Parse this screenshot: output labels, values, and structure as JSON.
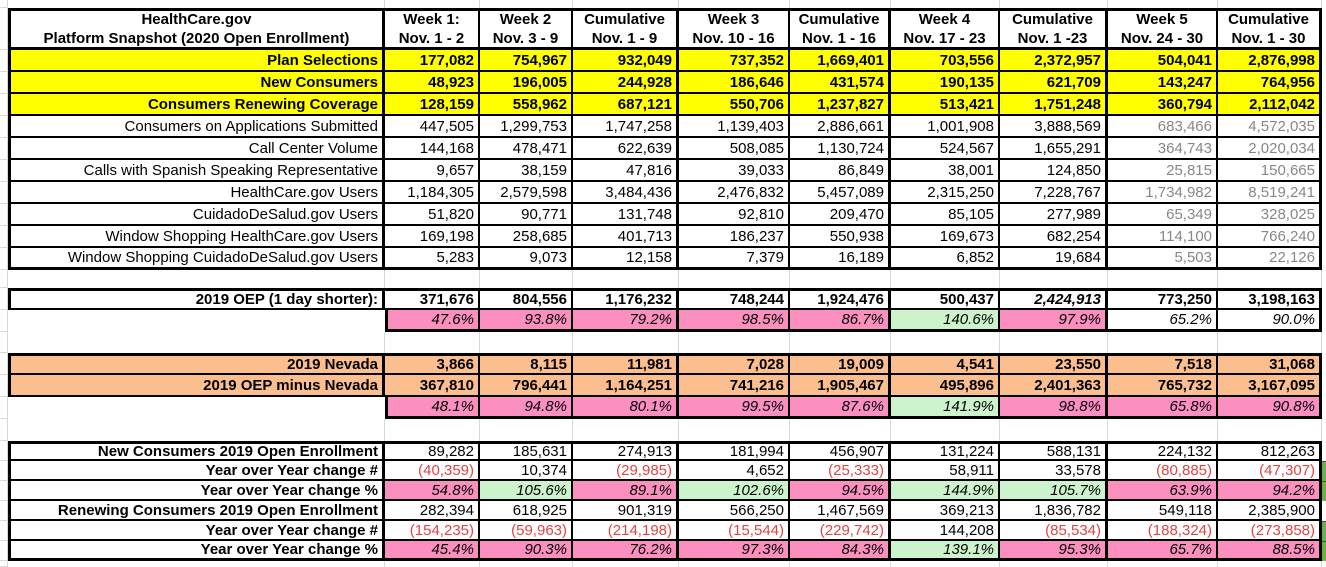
{
  "colors": {
    "highlight_yellow": "#ffff00",
    "highlight_orange": "#fbbf8f",
    "percent_pink": "#fa8fc0",
    "percent_green": "#ccf3cc",
    "negative_red": "#e04444",
    "muted_gray_text": "#878787"
  },
  "table": {
    "title": [
      "HealthCare.gov",
      "Platform Snapshot (2020 Open Enrollment)"
    ],
    "columns": [
      [
        "Week 1:",
        "Nov. 1 - 2"
      ],
      [
        "Week 2",
        "Nov. 3 - 9"
      ],
      [
        "Cumulative",
        "Nov. 1 - 9"
      ],
      [
        "Week 3",
        "Nov. 10 - 16"
      ],
      [
        "Cumulative",
        "Nov. 1 - 16"
      ],
      [
        "Week 4",
        "Nov. 17 - 23"
      ],
      [
        "Cumulative",
        "Nov. 1 -23"
      ],
      [
        "Week 5",
        "Nov. 24 - 30"
      ],
      [
        "Cumulative",
        "Nov. 1 - 30"
      ]
    ],
    "rows": [
      {
        "label": "Plan Selections",
        "highlight": "yellow",
        "values": [
          "177,082",
          "754,967",
          "932,049",
          "737,352",
          "1,669,401",
          "703,556",
          "2,372,957",
          "504,041",
          "2,876,998"
        ]
      },
      {
        "label": "New Consumers",
        "highlight": "yellow",
        "values": [
          "48,923",
          "196,005",
          "244,928",
          "186,646",
          "431,574",
          "190,135",
          "621,709",
          "143,247",
          "764,956"
        ]
      },
      {
        "label": "Consumers Renewing Coverage",
        "highlight": "yellow",
        "values": [
          "128,159",
          "558,962",
          "687,121",
          "550,706",
          "1,237,827",
          "513,421",
          "1,751,248",
          "360,794",
          "2,112,042"
        ]
      },
      {
        "label": "Consumers on Applications Submitted",
        "values": [
          "447,505",
          "1,299,753",
          "1,747,258",
          "1,139,403",
          "2,886,661",
          "1,001,908",
          "3,888,569",
          "683,466",
          "4,572,035"
        ]
      },
      {
        "label": "Call Center Volume",
        "values": [
          "144,168",
          "478,471",
          "622,639",
          "508,085",
          "1,130,724",
          "524,567",
          "1,655,291",
          "364,743",
          "2,020,034"
        ]
      },
      {
        "label": "Calls with Spanish Speaking Representative",
        "values": [
          "9,657",
          "38,159",
          "47,816",
          "39,033",
          "86,849",
          "38,001",
          "124,850",
          "25,815",
          "150,665"
        ]
      },
      {
        "label": "HealthCare.gov Users",
        "values": [
          "1,184,305",
          "2,579,598",
          "3,484,436",
          "2,476,832",
          "5,457,089",
          "2,315,250",
          "7,228,767",
          "1,734,982",
          "8,519,241"
        ]
      },
      {
        "label": "CuidadoDeSalud.gov Users",
        "values": [
          "51,820",
          "90,771",
          "131,748",
          "92,810",
          "209,470",
          "85,105",
          "277,989",
          "65,349",
          "328,025"
        ]
      },
      {
        "label": "Window Shopping HealthCare.gov Users",
        "values": [
          "169,198",
          "258,685",
          "401,713",
          "186,237",
          "550,938",
          "169,673",
          "682,254",
          "114,100",
          "766,240"
        ]
      },
      {
        "label": "Window Shopping CuidadoDeSalud.gov Users",
        "values": [
          "5,283",
          "9,073",
          "12,158",
          "7,379",
          "16,189",
          "6,852",
          "19,684",
          "5,503",
          "22,126"
        ]
      }
    ]
  },
  "oep_2019": {
    "label": "2019 OEP (1 day shorter):",
    "values": [
      "371,676",
      "804,556",
      "1,176,232",
      "748,244",
      "1,924,476",
      "500,437",
      "2,424,913",
      "773,250",
      "3,198,163"
    ],
    "italic_value_index": 6,
    "pct": [
      "47.6%",
      "93.8%",
      "79.2%",
      "98.5%",
      "86.7%",
      "140.6%",
      "97.9%",
      "65.2%",
      "90.0%"
    ],
    "pct_bg": [
      "pink",
      "pink",
      "pink",
      "pink",
      "pink",
      "green",
      "pink",
      "none",
      "none"
    ]
  },
  "nevada_2019": {
    "rows": [
      {
        "label": "2019 Nevada",
        "values": [
          "3,866",
          "8,115",
          "11,981",
          "7,028",
          "19,009",
          "4,541",
          "23,550",
          "7,518",
          "31,068"
        ]
      },
      {
        "label": "2019 OEP minus Nevada",
        "values": [
          "367,810",
          "796,441",
          "1,164,251",
          "741,216",
          "1,905,467",
          "495,896",
          "2,401,363",
          "765,732",
          "3,167,095"
        ]
      }
    ],
    "pct": [
      "48.1%",
      "94.8%",
      "80.1%",
      "99.5%",
      "87.6%",
      "141.9%",
      "98.8%",
      "65.8%",
      "90.8%"
    ],
    "pct_bg": [
      "pink",
      "pink",
      "pink",
      "pink",
      "pink",
      "green",
      "pink",
      "pink",
      "pink"
    ]
  },
  "yoy": {
    "rows": [
      {
        "label": "New Consumers 2019 Open Enrollment",
        "kind": "count",
        "values": [
          "89,282",
          "185,631",
          "274,913",
          "181,994",
          "456,907",
          "131,224",
          "588,131",
          "224,132",
          "812,263"
        ]
      },
      {
        "label": "Year over Year change #",
        "kind": "delta",
        "values": [
          "(40,359)",
          "10,374",
          "(29,985)",
          "4,652",
          "(25,333)",
          "58,911",
          "33,578",
          "(80,885)",
          "(47,307)"
        ]
      },
      {
        "label": "Year over Year change %",
        "kind": "pct",
        "values": [
          "54.8%",
          "105.6%",
          "89.1%",
          "102.6%",
          "94.5%",
          "144.9%",
          "105.7%",
          "63.9%",
          "94.2%"
        ],
        "bg": [
          "pink",
          "green",
          "pink",
          "green",
          "pink",
          "green",
          "green",
          "pink",
          "pink"
        ]
      },
      {
        "label": "Renewing Consumers 2019 Open Enrollment",
        "kind": "count",
        "values": [
          "282,394",
          "618,925",
          "901,319",
          "566,250",
          "1,467,569",
          "369,213",
          "1,836,782",
          "549,118",
          "2,385,900"
        ]
      },
      {
        "label": "Year over Year change #",
        "kind": "delta",
        "values": [
          "(154,235)",
          "(59,963)",
          "(214,198)",
          "(15,544)",
          "(229,742)",
          "144,208",
          "(85,534)",
          "(188,324)",
          "(273,858)"
        ]
      },
      {
        "label": "Year over Year change %",
        "kind": "pct",
        "values": [
          "45.4%",
          "90.3%",
          "76.2%",
          "97.3%",
          "84.3%",
          "139.1%",
          "95.3%",
          "65.7%",
          "88.5%"
        ],
        "bg": [
          "pink",
          "pink",
          "pink",
          "pink",
          "pink",
          "green",
          "pink",
          "pink",
          "pink"
        ]
      }
    ]
  }
}
